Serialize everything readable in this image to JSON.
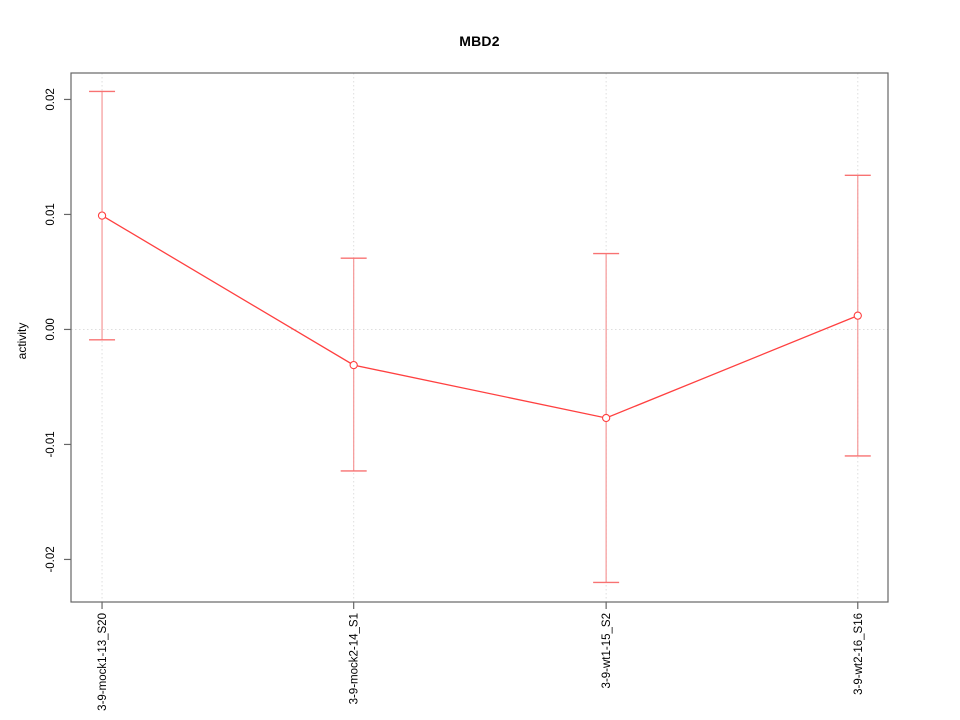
{
  "chart_data": {
    "type": "line",
    "title": "MBD2",
    "xlabel": "",
    "ylabel": "activity",
    "categories": [
      "3-9-mock1-13_S20",
      "3-9-mock2-14_S1",
      "3-9-wt1-15_S2",
      "3-9-wt2-16_S16"
    ],
    "series": [
      {
        "name": "MBD2 activity",
        "marker": "open-circle",
        "values": [
          0.0099,
          -0.0031,
          -0.0077,
          0.0012
        ],
        "error_high": [
          0.0207,
          0.0062,
          0.0066,
          0.0134
        ],
        "error_low": [
          -0.0009,
          -0.0123,
          -0.022,
          -0.011
        ]
      }
    ],
    "yticks": [
      {
        "value": 0.02,
        "label": "0.02"
      },
      {
        "value": 0.01,
        "label": "0.01"
      },
      {
        "value": 0,
        "label": "0.00"
      },
      {
        "value": -0.01,
        "label": "-0.01"
      },
      {
        "value": -0.02,
        "label": "-0.02"
      }
    ],
    "ylim": [
      -0.0237,
      0.0223
    ],
    "grid": {
      "horizontal_zero_line": true,
      "vertical_category_lines": true,
      "line_style": "dotted"
    },
    "legend": "none",
    "colors": {
      "line": "#ff4040",
      "marker": "#ff4040",
      "marker_fill": "#ffffff",
      "error_line": "#f59898",
      "error_cap": "#f87272",
      "grid": "#dedede",
      "axis": "#666666",
      "tick_text": "#000000",
      "title_text": "#000000",
      "background": "#ffffff"
    }
  }
}
